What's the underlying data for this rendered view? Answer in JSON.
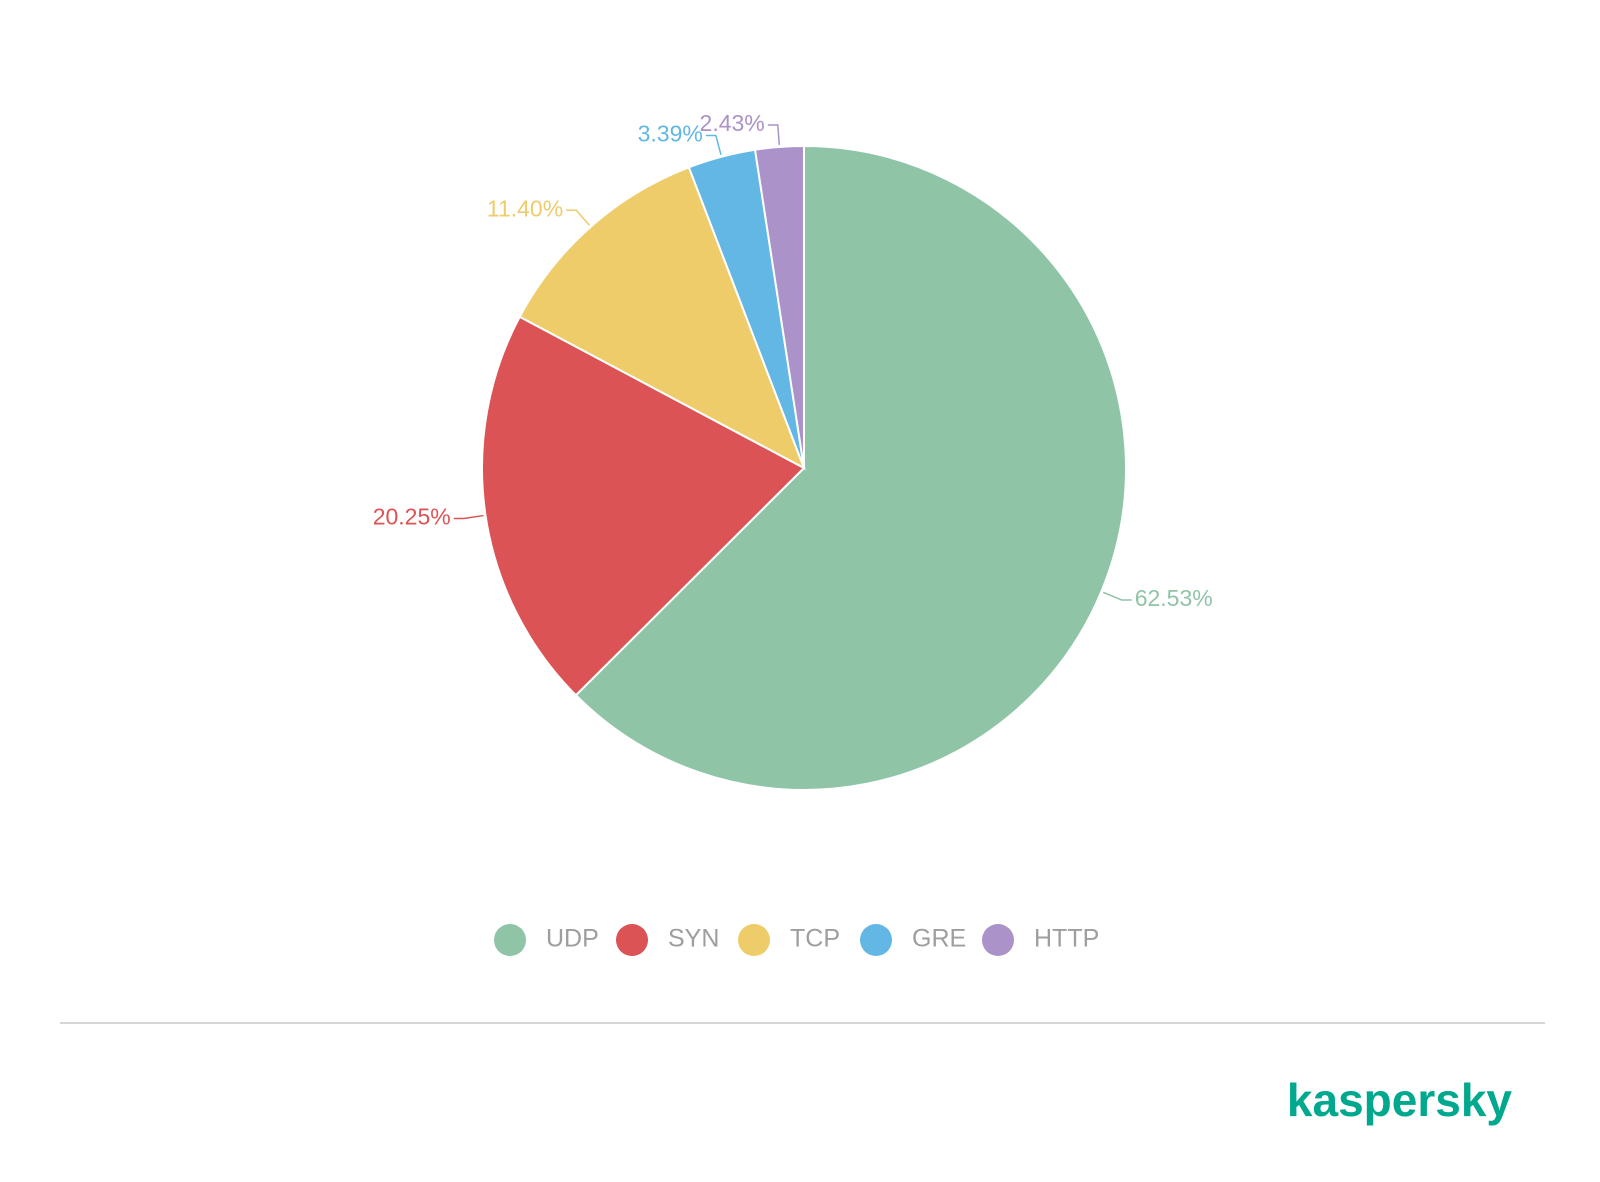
{
  "chart_data": {
    "type": "pie",
    "categories": [
      "UDP",
      "SYN",
      "TCP",
      "GRE",
      "HTTP"
    ],
    "values": [
      62.53,
      20.25,
      11.4,
      3.39,
      2.43
    ],
    "value_labels": [
      "62.53%",
      "20.25%",
      "11.40%",
      "3.39%",
      "2.43%"
    ],
    "colors": [
      "#8fc4a7",
      "#dc5355",
      "#eecc6a",
      "#62b7e5",
      "#ab92c8"
    ],
    "legend": "bottom"
  },
  "logo": "kaspersky"
}
